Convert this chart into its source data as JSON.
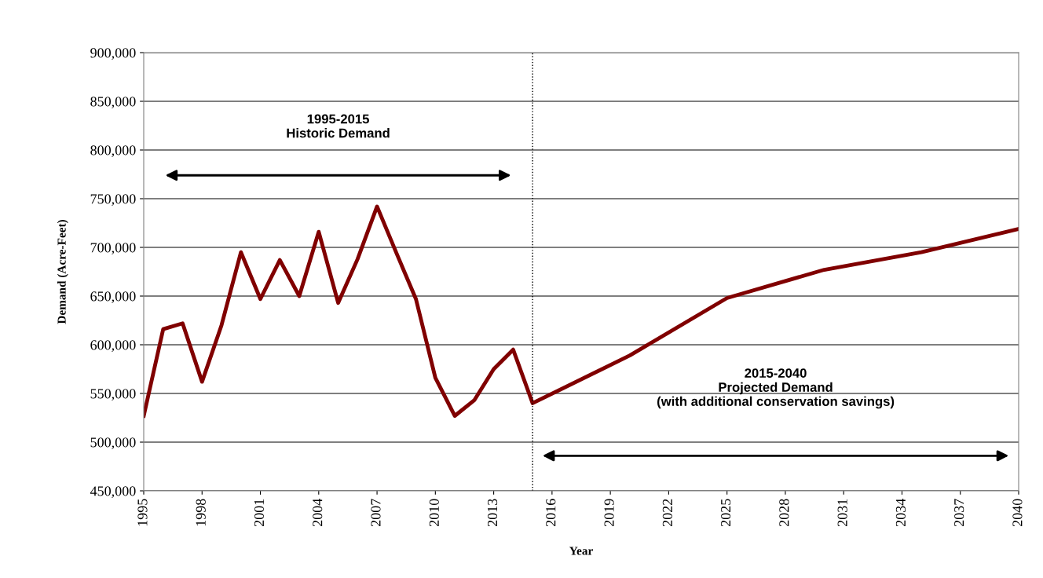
{
  "chart_data": {
    "type": "line",
    "xlabel": "Year",
    "ylabel": "Demand (Acre-Feet)",
    "x": [
      1995,
      1996,
      1997,
      1998,
      1999,
      2000,
      2001,
      2002,
      2003,
      2004,
      2005,
      2006,
      2007,
      2008,
      2009,
      2010,
      2011,
      2012,
      2013,
      2014,
      2015,
      2020,
      2025,
      2030,
      2035,
      2040
    ],
    "series": [
      {
        "color": "#800000",
        "values": [
          527000,
          616000,
          622000,
          562000,
          620000,
          695000,
          647000,
          687000,
          650000,
          716000,
          643000,
          688000,
          742000,
          694000,
          647000,
          566000,
          527000,
          543000,
          575000,
          595000,
          540000,
          589000,
          648000,
          677000,
          695000,
          719000
        ]
      }
    ],
    "xlim": [
      1995,
      2040
    ],
    "xticks": [
      1995,
      1998,
      2001,
      2004,
      2007,
      2010,
      2013,
      2016,
      2019,
      2022,
      2025,
      2028,
      2031,
      2034,
      2037,
      2040
    ],
    "ylim": [
      450000,
      900000
    ],
    "yticks": [
      {
        "value": 450000,
        "label": "450,000"
      },
      {
        "value": 500000,
        "label": "500,000"
      },
      {
        "value": 550000,
        "label": "550,000"
      },
      {
        "value": 600000,
        "label": "600,000"
      },
      {
        "value": 650000,
        "label": "650,000"
      },
      {
        "value": 700000,
        "label": "700,000"
      },
      {
        "value": 750000,
        "label": "750,000"
      },
      {
        "value": 800000,
        "label": "800,000"
      },
      {
        "value": 850000,
        "label": "850,000"
      },
      {
        "value": 900000,
        "label": "900,000"
      }
    ],
    "grid": "y",
    "marker": "none",
    "line_style": "solid",
    "ref_lines": [
      {
        "axis": "x",
        "value": 2015,
        "color": "#000000",
        "line_style": "dotted"
      }
    ],
    "annotations": [
      "1995-2015\nHistoric Demand",
      "2015-2040\nProjected Demand\n(with additional conservation savings)"
    ]
  }
}
